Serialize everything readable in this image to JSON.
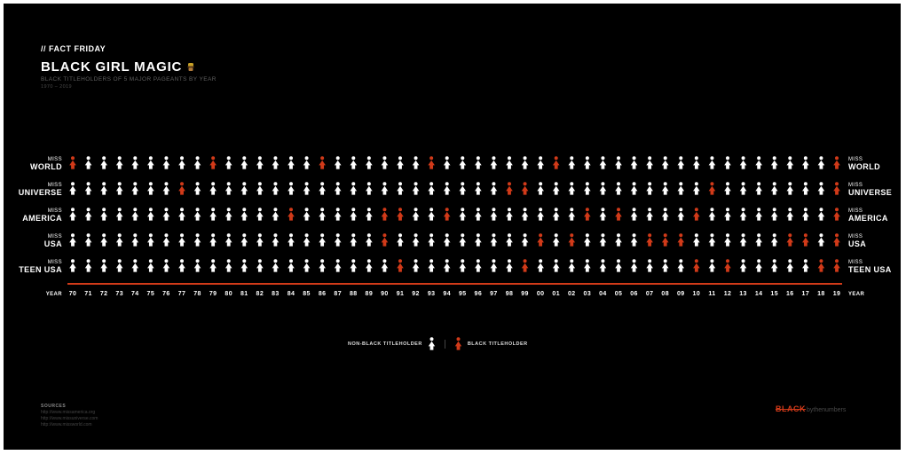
{
  "header": {
    "kicker": "// FACT FRIDAY",
    "title": "BLACK GIRL MAGIC",
    "subtitle": "BLACK TITLEHOLDERS OF 5 MAJOR PAGEANTS BY YEAR",
    "range": "1970 – 2019"
  },
  "legend": {
    "non_black": "NON-BLACK TITLEHOLDER",
    "black": "BLACK TITLEHOLDER"
  },
  "sources": {
    "heading": "SOURCES",
    "lines": [
      "http://www.missamerica.org",
      "http://www.missuniverse.com",
      "http://www.missworld.com"
    ]
  },
  "brand": {
    "main": "BLACK",
    "sub": "bythenumbers"
  },
  "colors": {
    "background": "#000000",
    "non_black": "#ffffff",
    "black": "#d13a19",
    "axis_line": "#d13a19"
  },
  "icons": {
    "non_black": "woman-figure-icon",
    "black": "woman-figure-icon",
    "title": "magic-icon"
  },
  "chart_data": {
    "type": "table",
    "x_label": "YEAR",
    "x": [
      1970,
      1971,
      1972,
      1973,
      1974,
      1975,
      1976,
      1977,
      1978,
      1979,
      1980,
      1981,
      1982,
      1983,
      1984,
      1985,
      1986,
      1987,
      1988,
      1989,
      1990,
      1991,
      1992,
      1993,
      1994,
      1995,
      1996,
      1997,
      1998,
      1999,
      2000,
      2001,
      2002,
      2003,
      2004,
      2005,
      2006,
      2007,
      2008,
      2009,
      2010,
      2011,
      2012,
      2013,
      2014,
      2015,
      2016,
      2017,
      2018,
      2019
    ],
    "tick_labels": [
      "70",
      "71",
      "72",
      "73",
      "74",
      "75",
      "76",
      "77",
      "78",
      "79",
      "80",
      "81",
      "82",
      "83",
      "84",
      "85",
      "86",
      "87",
      "88",
      "89",
      "90",
      "91",
      "92",
      "93",
      "94",
      "95",
      "96",
      "97",
      "98",
      "99",
      "00",
      "01",
      "02",
      "03",
      "04",
      "05",
      "06",
      "07",
      "08",
      "09",
      "10",
      "11",
      "12",
      "13",
      "14",
      "15",
      "16",
      "17",
      "18",
      "19"
    ],
    "rows": [
      {
        "prefix": "MISS",
        "name": "WORLD",
        "black_years": [
          1970,
          1979,
          1986,
          1993,
          2001,
          2019
        ]
      },
      {
        "prefix": "MISS",
        "name": "UNIVERSE",
        "black_years": [
          1977,
          1998,
          1999,
          2011,
          2019
        ]
      },
      {
        "prefix": "MISS",
        "name": "AMERICA",
        "black_years": [
          1984,
          1990,
          1991,
          1994,
          2003,
          2005,
          2010,
          2019
        ]
      },
      {
        "prefix": "MISS",
        "name": "USA",
        "black_years": [
          1990,
          2000,
          2002,
          2007,
          2008,
          2009,
          2016,
          2017,
          2019
        ]
      },
      {
        "prefix": "MISS",
        "name": "TEEN USA",
        "black_years": [
          1991,
          1999,
          2010,
          2012,
          2018,
          2019
        ]
      }
    ]
  }
}
